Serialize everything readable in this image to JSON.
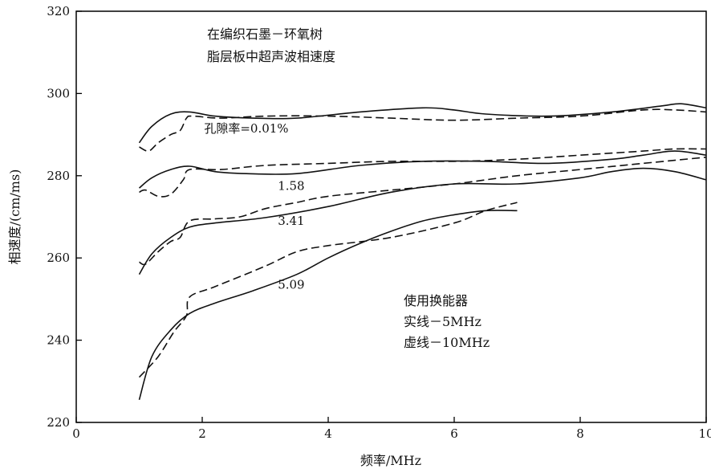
{
  "chart_data": {
    "type": "line",
    "title_lines": [
      "在编织石墨－环氧树",
      "脂层板中超声波相速度"
    ],
    "xlabel": "频率/MHz",
    "ylabel": "相速度/(cm/ms)",
    "xlim": [
      0,
      10
    ],
    "ylim": [
      220,
      320
    ],
    "xticks": [
      0,
      2,
      4,
      6,
      8,
      10
    ],
    "yticks": [
      220,
      240,
      260,
      280,
      300,
      320
    ],
    "grid": false,
    "legend_lines": [
      "使用换能器",
      "实线－5MHz",
      "虚线－10MHz"
    ],
    "series": [
      {
        "porosity": "0.01",
        "transducer": "5MHz",
        "style": "solid",
        "x": [
          1.0,
          1.2,
          1.5,
          1.8,
          2.2,
          2.8,
          3.5,
          4.5,
          5.5,
          6.0,
          6.5,
          7.5,
          8.5,
          9.3,
          9.6,
          10.0
        ],
        "y": [
          288,
          292,
          295,
          295.5,
          294.5,
          294,
          294,
          295.5,
          296.5,
          296,
          295,
          294.5,
          295.5,
          297,
          297.5,
          296.5
        ]
      },
      {
        "porosity": "0.01",
        "transducer": "10MHz",
        "style": "dashed",
        "x": [
          1.0,
          1.15,
          1.3,
          1.5,
          1.65,
          1.75,
          1.85,
          2.3,
          3.0,
          4.0,
          5.0,
          6.0,
          7.0,
          8.0,
          9.0,
          9.5,
          10.0
        ],
        "y": [
          287,
          286,
          288,
          290,
          291,
          294,
          294.5,
          294,
          294.5,
          294.5,
          294,
          293.5,
          294,
          294.5,
          296,
          296,
          295.5
        ]
      },
      {
        "porosity": "1.58",
        "transducer": "5MHz",
        "style": "solid",
        "x": [
          1.0,
          1.2,
          1.5,
          1.8,
          2.2,
          2.7,
          3.5,
          4.5,
          5.5,
          6.5,
          7.5,
          8.5,
          9.0,
          9.5,
          10.0
        ],
        "y": [
          277,
          279.5,
          281.5,
          282.3,
          281,
          280.5,
          280.5,
          282.5,
          283.5,
          283.5,
          283,
          284,
          285,
          286,
          285
        ]
      },
      {
        "porosity": "1.58",
        "transducer": "10MHz",
        "style": "dashed",
        "x": [
          1.0,
          1.1,
          1.3,
          1.5,
          1.7,
          1.8,
          2.3,
          3.0,
          4.0,
          5.0,
          6.0,
          7.0,
          8.0,
          9.0,
          9.5,
          10.0
        ],
        "y": [
          276,
          276.5,
          275,
          275.5,
          279,
          281.5,
          281.5,
          282.5,
          283,
          283.5,
          283.5,
          284,
          285,
          286,
          286.5,
          286.5
        ]
      },
      {
        "porosity": "3.41",
        "transducer": "5MHz",
        "style": "solid",
        "x": [
          1.0,
          1.2,
          1.5,
          1.8,
          2.2,
          3.0,
          4.0,
          5.0,
          6.0,
          7.0,
          8.0,
          8.5,
          9.0,
          9.5,
          10.0
        ],
        "y": [
          256,
          261,
          265,
          267.5,
          268.5,
          269.8,
          272.5,
          276,
          278,
          278,
          279.5,
          281,
          281.8,
          281,
          279
        ]
      },
      {
        "porosity": "3.41",
        "transducer": "10MHz",
        "style": "dashed",
        "x": [
          1.0,
          1.1,
          1.3,
          1.5,
          1.65,
          1.8,
          2.2,
          2.6,
          3.0,
          3.5,
          4.0,
          5.0,
          6.0,
          7.0,
          8.0,
          9.0,
          10.0
        ],
        "y": [
          259,
          258.5,
          261.5,
          264,
          265,
          269,
          269.5,
          270,
          272,
          273.5,
          275,
          276.5,
          278,
          280,
          281.5,
          283,
          284.5
        ]
      },
      {
        "porosity": "5.09",
        "transducer": "5MHz",
        "style": "solid",
        "x": [
          1.0,
          1.2,
          1.5,
          1.8,
          2.2,
          2.8,
          3.5,
          4.0,
          4.5,
          5.0,
          5.5,
          6.0,
          6.5,
          7.0
        ],
        "y": [
          225.5,
          236,
          242.5,
          246.5,
          249,
          252,
          256,
          260,
          263.5,
          266.5,
          269,
          270.5,
          271.5,
          271.5
        ]
      },
      {
        "porosity": "5.09",
        "transducer": "10MHz",
        "style": "dashed",
        "x": [
          1.0,
          1.3,
          1.55,
          1.75,
          1.8,
          2.2,
          3.0,
          3.5,
          4.0,
          5.0,
          6.0,
          6.5,
          7.0
        ],
        "y": [
          231,
          236,
          242,
          246,
          250.5,
          253,
          258,
          261.5,
          263,
          265,
          268.5,
          271.5,
          273.5
        ]
      }
    ],
    "annotations": [
      {
        "text": "孔隙率=0.01%",
        "x": 2.03,
        "y": 290.5
      },
      {
        "text": "1.58",
        "x": 3.2,
        "y": 276.5
      },
      {
        "text": "3.41",
        "x": 3.2,
        "y": 268
      },
      {
        "text": "5.09",
        "x": 3.2,
        "y": 252.5
      }
    ],
    "colors": {
      "axis": "#000000",
      "line": "#111111",
      "background": "#ffffff"
    }
  }
}
